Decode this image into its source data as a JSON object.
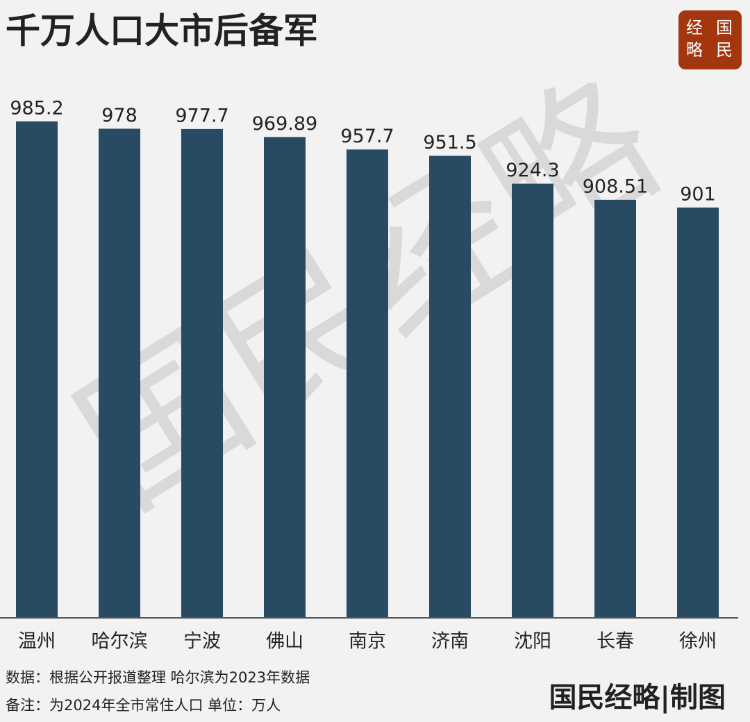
{
  "chart_data": {
    "type": "bar",
    "title": "千万人口大市后备军",
    "logo": [
      "经",
      "国",
      "略",
      "民"
    ],
    "watermark": "国民经略",
    "categories": [
      "温州",
      "哈尔滨",
      "宁波",
      "佛山",
      "南京",
      "济南",
      "沈阳",
      "长春",
      "徐州"
    ],
    "values": [
      985.2,
      978,
      977.7,
      969.89,
      957.7,
      951.5,
      924.3,
      908.51,
      901
    ],
    "color": "#284a63",
    "ylim": [
      500,
      1000
    ],
    "notes": [
      "数据：根据公开报道整理 哈尔滨为2023年数据",
      "备注：为2024年全市常住人口  单位：万人"
    ],
    "brand": "国民经略|制图"
  }
}
